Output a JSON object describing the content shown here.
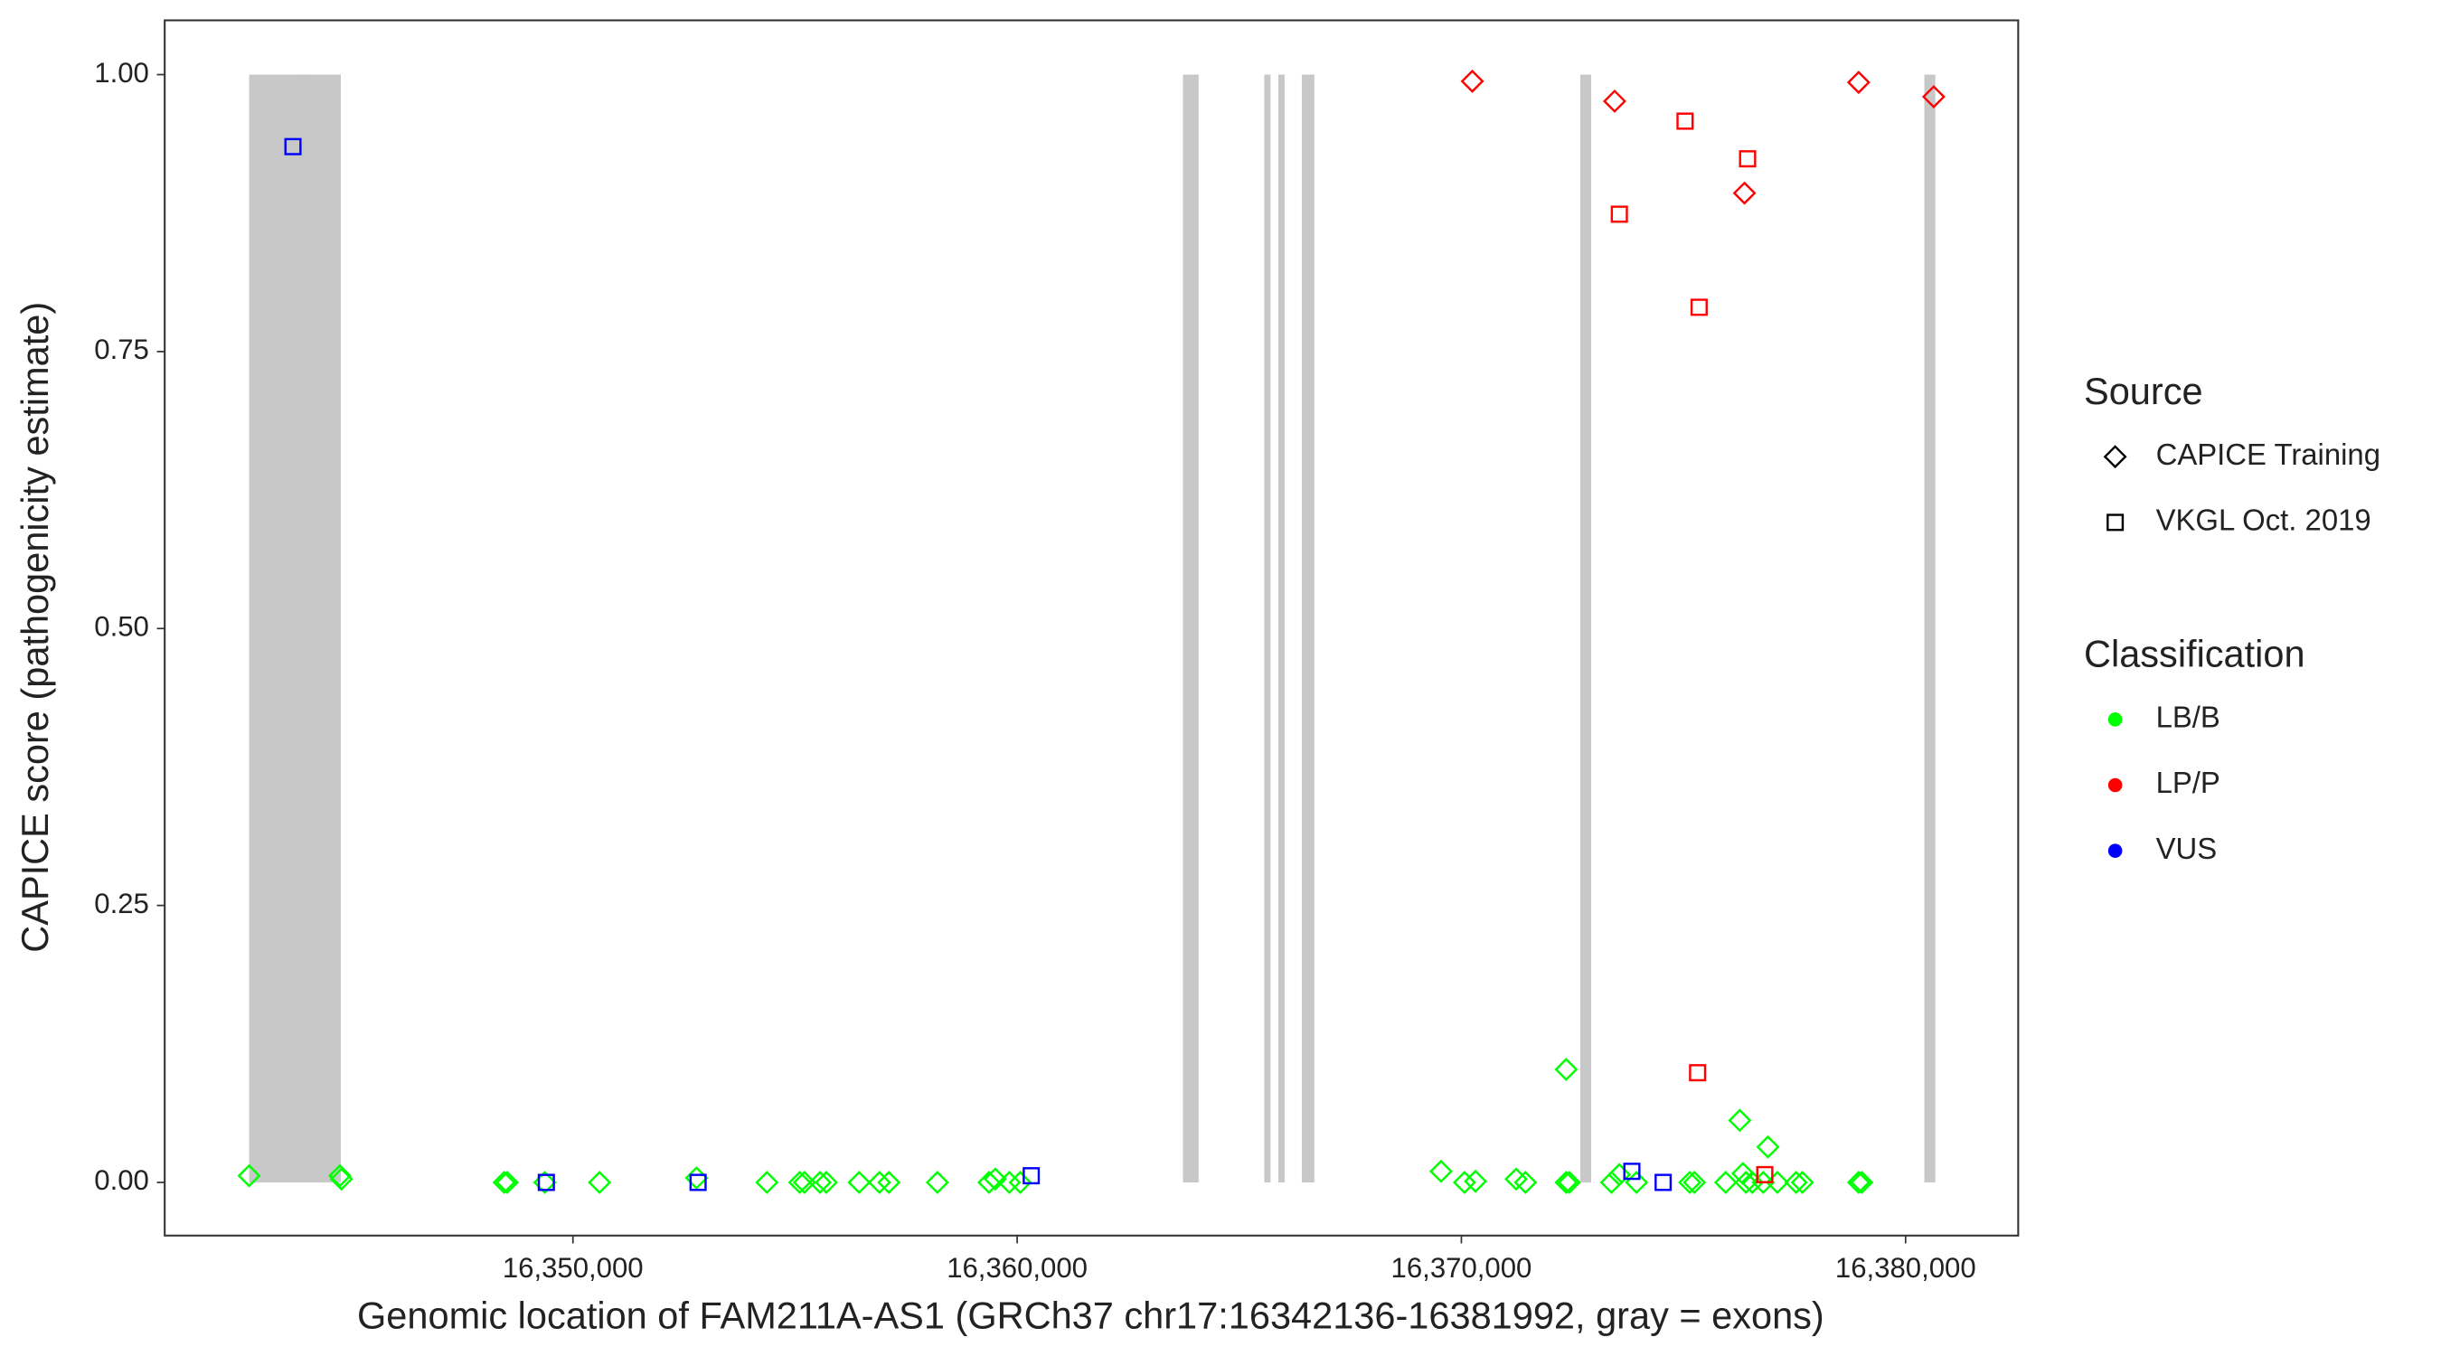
{
  "chart_data": {
    "type": "scatter",
    "x_label": "Genomic location of FAM211A-AS1 (GRCh37 chr17:16342136-16381992, gray = exons)",
    "y_label": "CAPICE score (pathogenicity estimate)",
    "xlim": [
      16340810,
      16382535
    ],
    "ylim": [
      -0.048,
      1.049
    ],
    "xticks": [
      {
        "value": 16350000,
        "label": "16,350,000"
      },
      {
        "value": 16360000,
        "label": "16,360,000"
      },
      {
        "value": 16370000,
        "label": "16,370,000"
      },
      {
        "value": 16380000,
        "label": "16,380,000"
      }
    ],
    "yticks": [
      {
        "value": 0,
        "label": "0.00"
      },
      0.25,
      {
        "value": 0.5,
        "label": "0.50"
      },
      0.75,
      {
        "value": 1,
        "label": "1.00"
      }
    ],
    "exons": {
      "color": "#c8c8c8",
      "y": [
        0,
        1
      ],
      "starts": [
        16342711,
        16343859,
        16363732,
        16365563,
        16365880,
        16366408,
        16372676,
        16380422
      ],
      "ends": [
        16344049,
        16344775,
        16364085,
        16365704,
        16366021,
        16366690,
        16372922,
        16380669
      ]
    },
    "legend": {
      "shape_title": "Source",
      "shapes": [
        {
          "name": "CAPICE Training",
          "shape": "diamond"
        },
        {
          "name": "VKGL Oct. 2019",
          "shape": "square"
        }
      ],
      "color_title": "Classification",
      "colors": [
        {
          "name": "LB/B",
          "color": "#00ff00"
        },
        {
          "name": "LP/P",
          "color": "#ff0000"
        },
        {
          "name": "VUS",
          "color": "#0000ff"
        }
      ]
    },
    "series": [
      {
        "shape": "diamond",
        "color": "#00ff00",
        "x": [
          16342711,
          16344754,
          16344789,
          16348451,
          16348521,
          16349366,
          16350599,
          16352782,
          16354366,
          16355106,
          16355211,
          16355563,
          16355704,
          16356443,
          16356901,
          16357113,
          16358204,
          16359366,
          16359507,
          16359824,
          16360070,
          16369542,
          16370070,
          16370317,
          16371232,
          16371443,
          16372359,
          16372359,
          16372430,
          16373380,
          16373556,
          16373943,
          16375141,
          16375246,
          16375950,
          16376267,
          16376338,
          16376408,
          16376549,
          16376901,
          16376795,
          16377113,
          16377535,
          16377676,
          16378943,
          16379014
        ],
        "values": [
          0.006,
          0.006,
          0.003,
          0,
          0,
          0,
          0,
          0.004,
          0,
          0,
          0,
          0,
          0,
          0,
          0,
          0,
          0,
          0,
          0.003,
          0,
          0,
          0.01,
          0,
          0.001,
          0.003,
          0,
          0.102,
          0,
          0,
          0,
          0.007,
          0,
          0,
          0,
          0,
          0.056,
          0.008,
          0,
          0,
          0.032,
          0,
          0,
          0,
          0,
          0,
          0
        ]
      },
      {
        "shape": "diamond",
        "color": "#ff0000",
        "x": [
          16370246,
          16373450,
          16376373,
          16378943,
          16380633
        ],
        "values": [
          0.994,
          0.976,
          0.893,
          0.993,
          0.98
        ]
      },
      {
        "shape": "square",
        "color": "#ff0000",
        "x": [
          16375035,
          16373556,
          16376443,
          16375352,
          16375317,
          16376830
        ],
        "values": [
          0.958,
          0.874,
          0.924,
          0.79,
          0.099,
          0.007
        ]
      },
      {
        "shape": "square",
        "color": "#0000ff",
        "x": [
          16343697,
          16349401,
          16352817,
          16360317,
          16373838,
          16374542
        ],
        "values": [
          0.935,
          0,
          0,
          0.006,
          0.01,
          0
        ]
      }
    ]
  }
}
